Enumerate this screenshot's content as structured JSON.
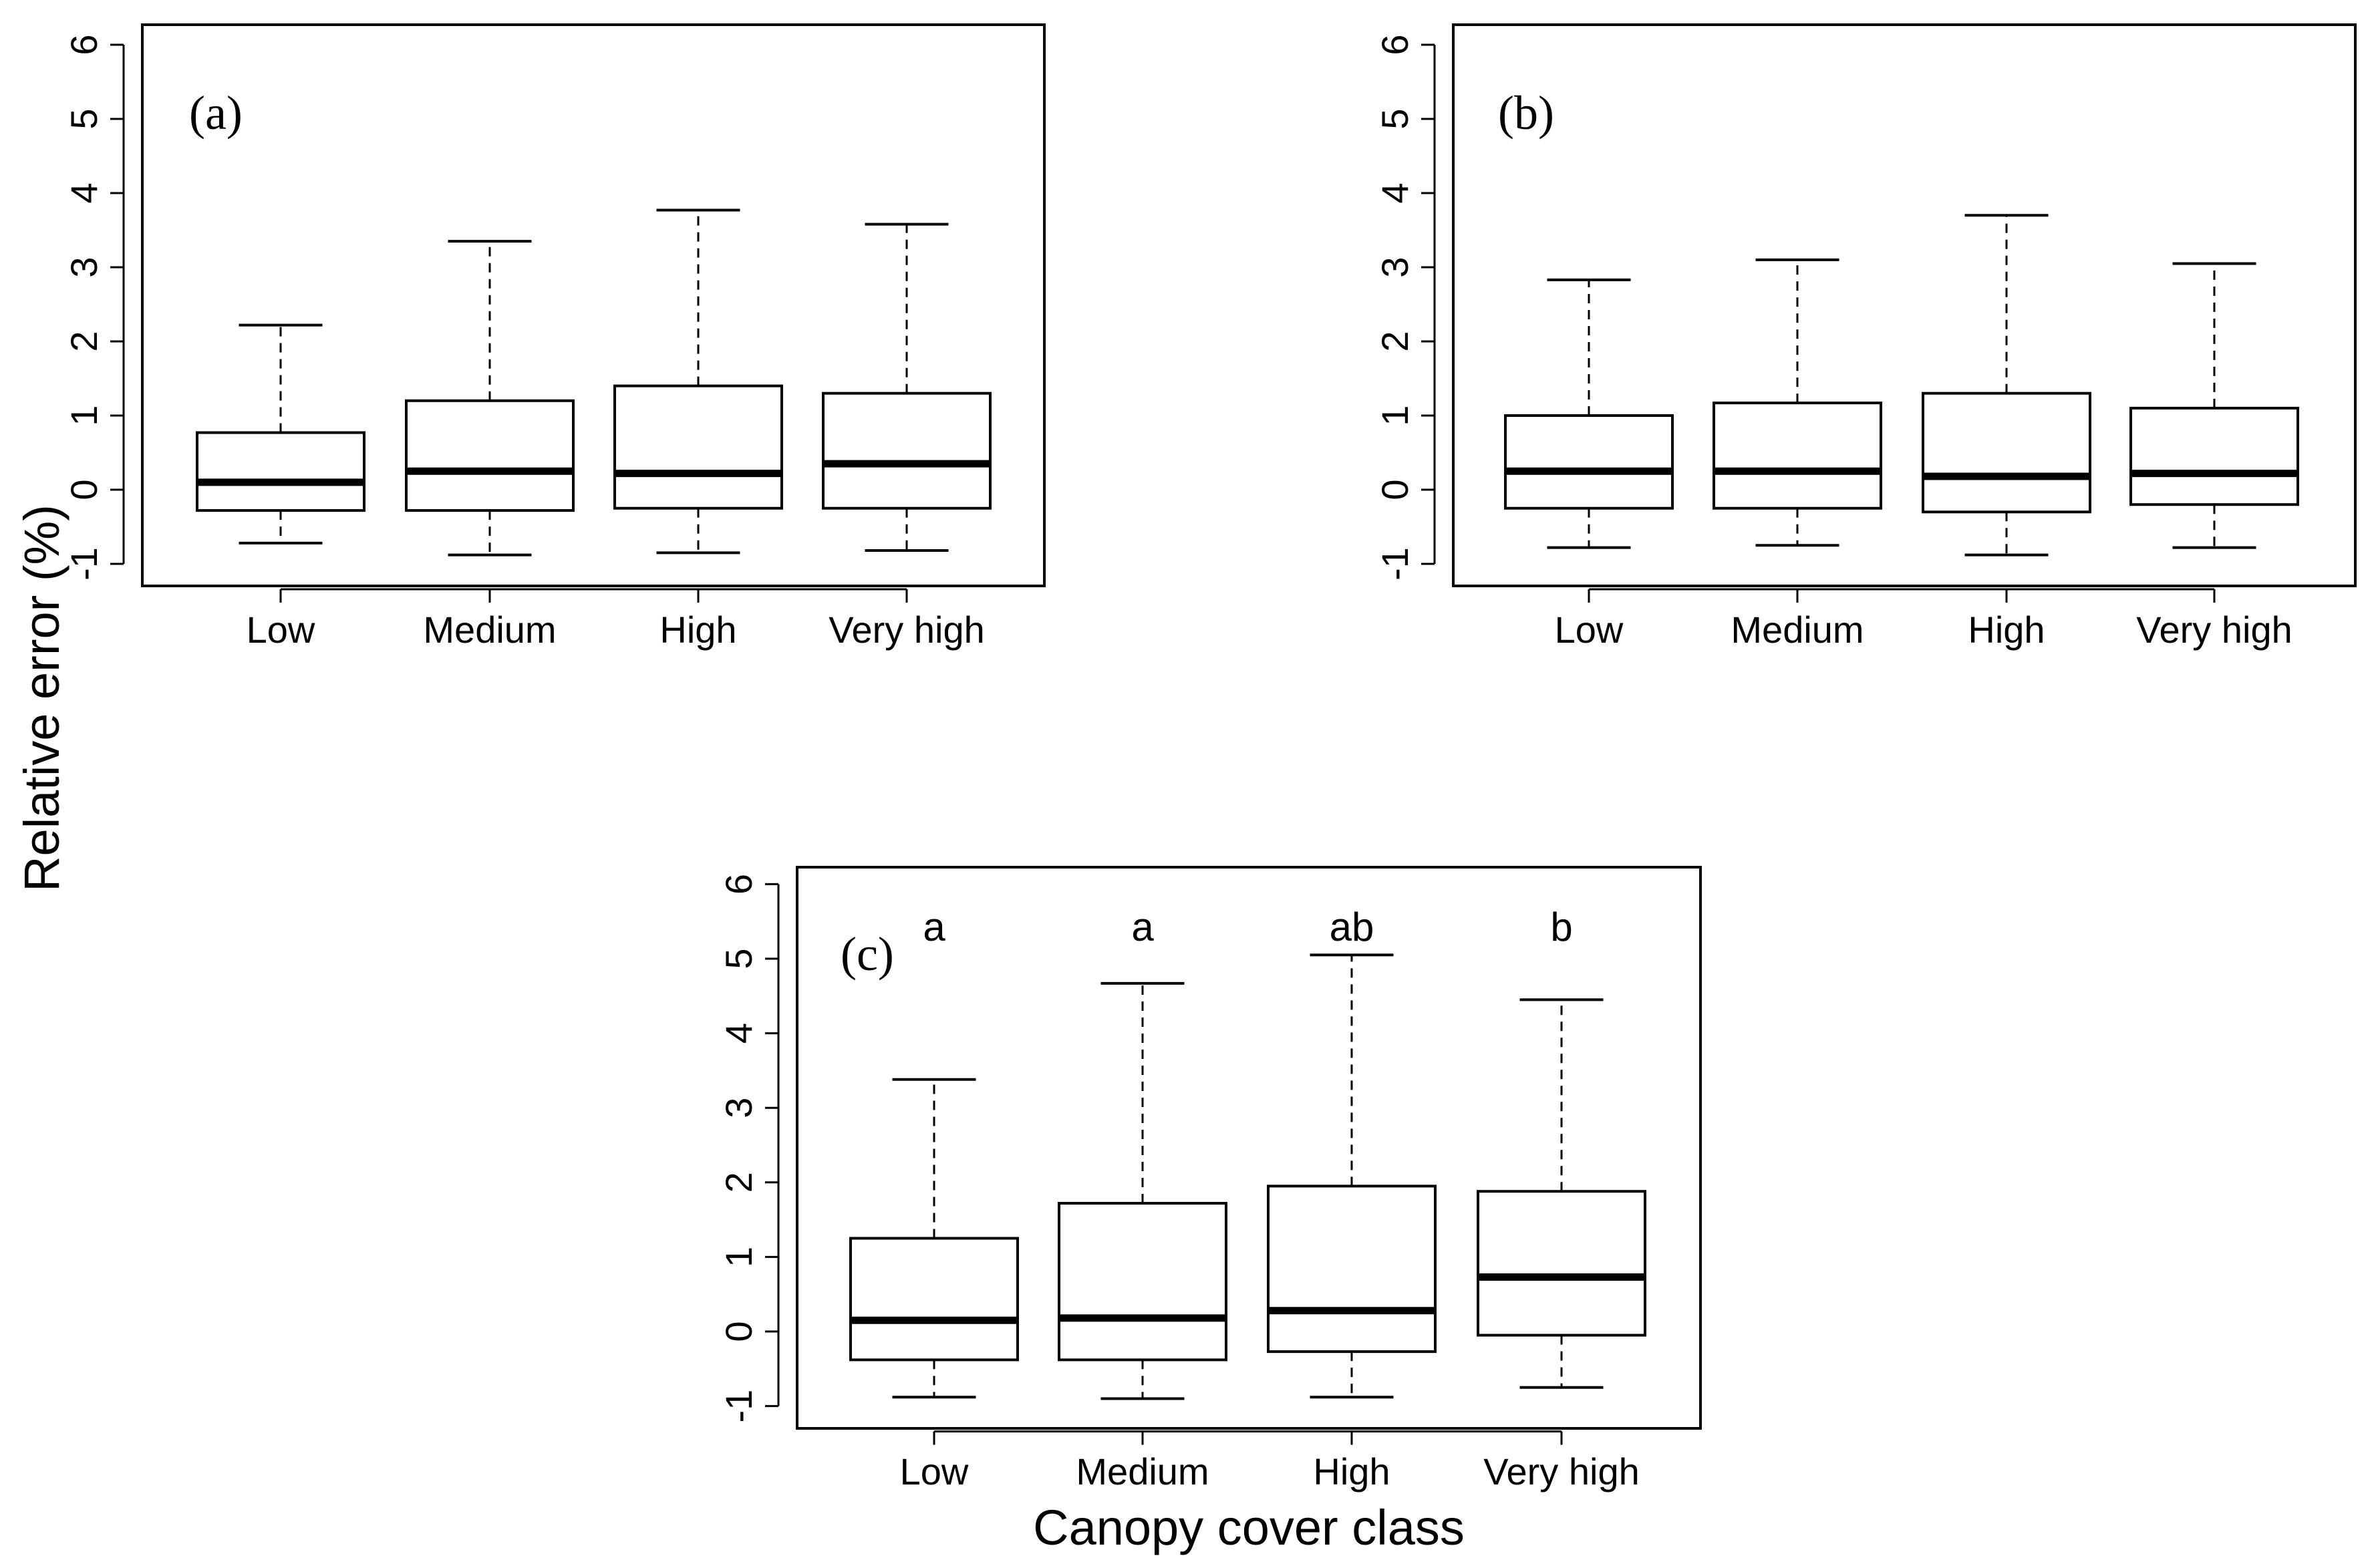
{
  "figure": {
    "ylabel": "Relative error (%)",
    "xlabel": "Canopy cover class"
  },
  "chart_data": [
    {
      "type": "box",
      "label": "(a)",
      "categories": [
        "Low",
        "Medium",
        "High",
        "Very high"
      ],
      "ylim": [
        -1,
        6
      ],
      "yticks": [
        "-1",
        "0",
        "1",
        "2",
        "3",
        "4",
        "5",
        "6"
      ],
      "boxes": [
        {
          "whisker_low": -0.72,
          "q1": -0.28,
          "median": 0.1,
          "q3": 0.77,
          "whisker_high": 2.22
        },
        {
          "whisker_low": -0.88,
          "q1": -0.28,
          "median": 0.25,
          "q3": 1.2,
          "whisker_high": 3.35
        },
        {
          "whisker_low": -0.85,
          "q1": -0.25,
          "median": 0.22,
          "q3": 1.4,
          "whisker_high": 3.77
        },
        {
          "whisker_low": -0.82,
          "q1": -0.25,
          "median": 0.35,
          "q3": 1.3,
          "whisker_high": 3.58
        }
      ],
      "letters": []
    },
    {
      "type": "box",
      "label": "(b)",
      "categories": [
        "Low",
        "Medium",
        "High",
        "Very high"
      ],
      "ylim": [
        -1,
        6
      ],
      "yticks": [
        "-1",
        "0",
        "1",
        "2",
        "3",
        "4",
        "5",
        "6"
      ],
      "boxes": [
        {
          "whisker_low": -0.78,
          "q1": -0.25,
          "median": 0.25,
          "q3": 1.0,
          "whisker_high": 2.83
        },
        {
          "whisker_low": -0.75,
          "q1": -0.25,
          "median": 0.25,
          "q3": 1.17,
          "whisker_high": 3.1
        },
        {
          "whisker_low": -0.88,
          "q1": -0.3,
          "median": 0.18,
          "q3": 1.3,
          "whisker_high": 3.7
        },
        {
          "whisker_low": -0.78,
          "q1": -0.2,
          "median": 0.22,
          "q3": 1.1,
          "whisker_high": 3.05
        }
      ],
      "letters": []
    },
    {
      "type": "box",
      "label": "(c)",
      "categories": [
        "Low",
        "Medium",
        "High",
        "Very high"
      ],
      "ylim": [
        -1,
        6
      ],
      "yticks": [
        "-1",
        "0",
        "1",
        "2",
        "3",
        "4",
        "5",
        "6"
      ],
      "boxes": [
        {
          "whisker_low": -0.88,
          "q1": -0.38,
          "median": 0.15,
          "q3": 1.25,
          "whisker_high": 3.38
        },
        {
          "whisker_low": -0.9,
          "q1": -0.38,
          "median": 0.18,
          "q3": 1.72,
          "whisker_high": 4.67
        },
        {
          "whisker_low": -0.88,
          "q1": -0.27,
          "median": 0.28,
          "q3": 1.95,
          "whisker_high": 5.05
        },
        {
          "whisker_low": -0.75,
          "q1": -0.05,
          "median": 0.73,
          "q3": 1.88,
          "whisker_high": 4.45
        }
      ],
      "letters": [
        "a",
        "a",
        "ab",
        "b"
      ]
    }
  ]
}
